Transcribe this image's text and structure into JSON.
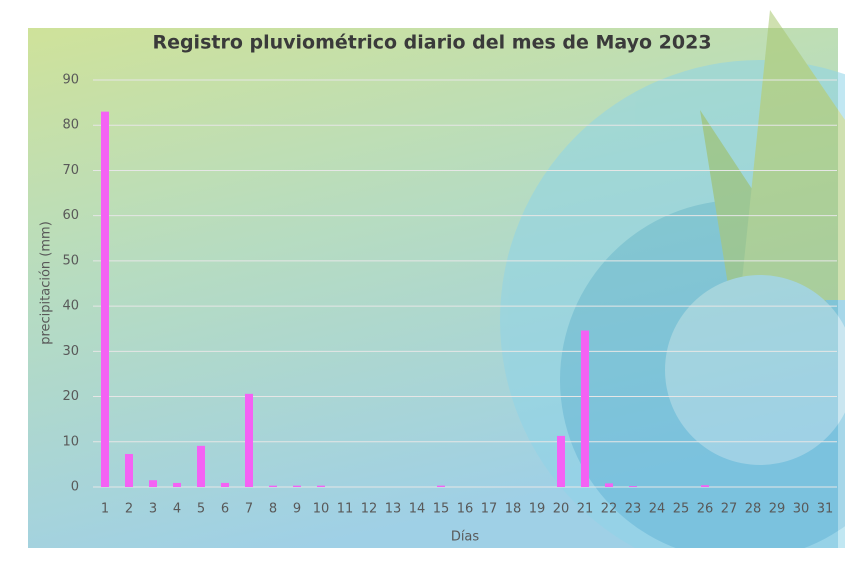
{
  "chart_data": {
    "type": "bar",
    "title": "Registro pluviométrico diario del mes de Mayo 2023",
    "x_label": "Días",
    "y_label": "precipitación (mm)",
    "categories": [
      "1",
      "2",
      "3",
      "4",
      "5",
      "6",
      "7",
      "8",
      "9",
      "10",
      "11",
      "12",
      "13",
      "14",
      "15",
      "16",
      "17",
      "18",
      "19",
      "20",
      "21",
      "22",
      "23",
      "24",
      "25",
      "26",
      "27",
      "28",
      "29",
      "30",
      "31"
    ],
    "values": [
      83,
      7.3,
      1.5,
      0.9,
      9.1,
      0.9,
      20.6,
      0.3,
      0.3,
      0.3,
      0,
      0,
      0,
      0,
      0.3,
      0,
      0,
      0,
      0,
      11.3,
      34.6,
      0.8,
      0.2,
      0,
      0,
      0.4,
      0,
      0,
      0,
      0,
      0
    ],
    "color": "#f462f4",
    "ylim": [
      0,
      90
    ],
    "yticks": [
      0,
      10,
      20,
      30,
      40,
      50,
      60,
      70,
      80,
      90
    ],
    "grid": true
  }
}
